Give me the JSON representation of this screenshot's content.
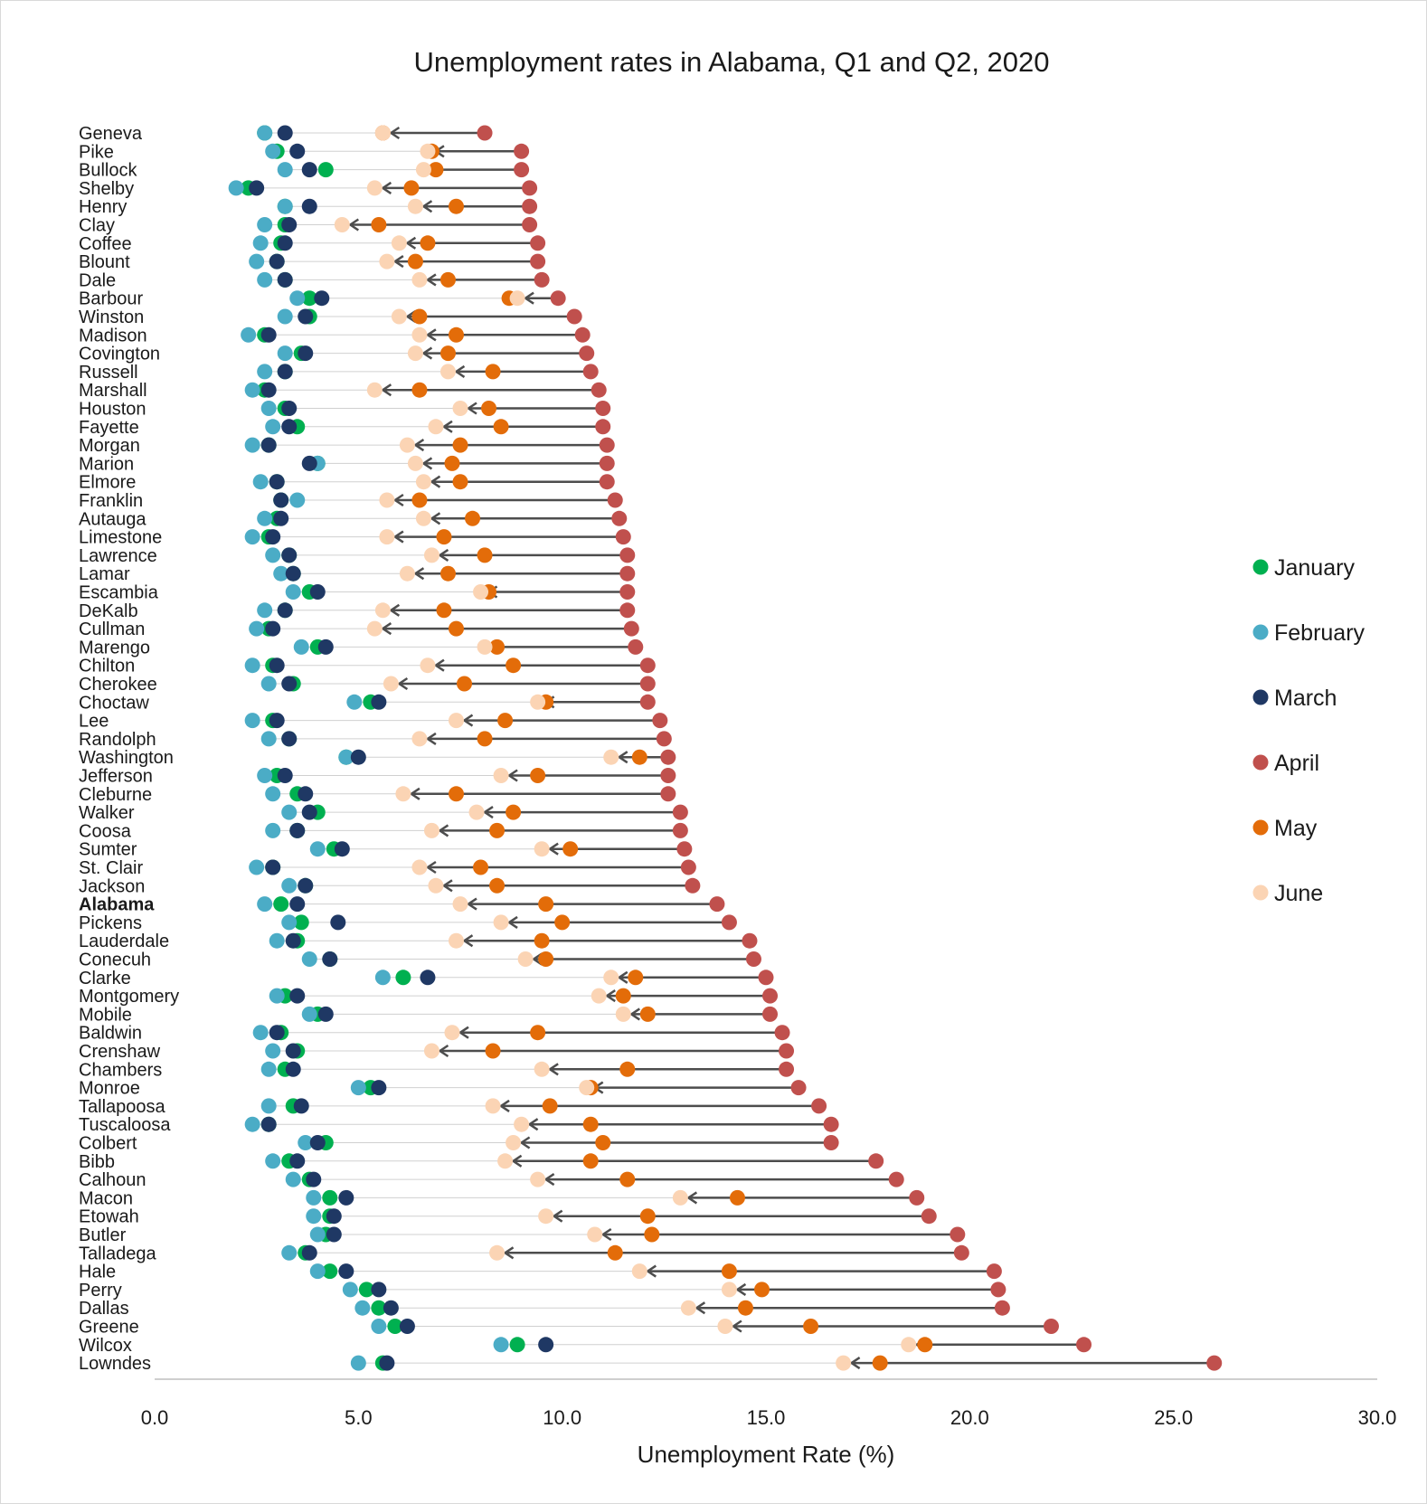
{
  "chart_data": {
    "type": "scatter",
    "title": "Unemployment rates in Alabama, Q1 and Q2, 2020",
    "xlabel": "Unemployment  Rate (%)",
    "xlim": [
      0,
      30
    ],
    "xticks": [
      "0.0",
      "5.0",
      "10.0",
      "15.0",
      "20.0",
      "25.0",
      "30.0"
    ],
    "legend_position": "right",
    "series": [
      {
        "name": "January",
        "color": "#00b050"
      },
      {
        "name": "February",
        "color": "#4bacc6"
      },
      {
        "name": "March",
        "color": "#1f3864"
      },
      {
        "name": "April",
        "color": "#c0504d"
      },
      {
        "name": "May",
        "color": "#e36c09"
      },
      {
        "name": "June",
        "color": "#fbd4b4"
      }
    ],
    "order": [
      "January",
      "February",
      "March",
      "April",
      "May",
      "June"
    ],
    "rows": [
      {
        "county": "Geneva",
        "values": [
          2.7,
          2.7,
          3.2,
          8.1,
          5.6,
          5.6
        ]
      },
      {
        "county": "Pike",
        "values": [
          3.0,
          2.9,
          3.5,
          9.0,
          6.8,
          6.7
        ]
      },
      {
        "county": "Bullock",
        "values": [
          4.2,
          3.2,
          3.8,
          9.0,
          6.9,
          6.6
        ]
      },
      {
        "county": "Shelby",
        "values": [
          2.3,
          2.0,
          2.5,
          9.2,
          6.3,
          5.4
        ]
      },
      {
        "county": "Henry",
        "values": [
          3.2,
          3.2,
          3.8,
          9.2,
          7.4,
          6.4
        ]
      },
      {
        "county": "Clay",
        "values": [
          3.2,
          2.7,
          3.3,
          9.2,
          5.5,
          4.6
        ]
      },
      {
        "county": "Coffee",
        "values": [
          3.1,
          2.6,
          3.2,
          9.4,
          6.7,
          6.0
        ]
      },
      {
        "county": "Blount",
        "values": [
          3.0,
          2.5,
          3.0,
          9.4,
          6.4,
          5.7
        ]
      },
      {
        "county": "Dale",
        "values": [
          3.2,
          2.7,
          3.2,
          9.5,
          7.2,
          6.5
        ]
      },
      {
        "county": "Barbour",
        "values": [
          3.8,
          3.5,
          4.1,
          9.9,
          8.7,
          8.9
        ]
      },
      {
        "county": "Winston",
        "values": [
          3.8,
          3.2,
          3.7,
          10.3,
          6.5,
          6.0
        ]
      },
      {
        "county": "Madison",
        "values": [
          2.7,
          2.3,
          2.8,
          10.5,
          7.4,
          6.5
        ]
      },
      {
        "county": "Covington",
        "values": [
          3.6,
          3.2,
          3.7,
          10.6,
          7.2,
          6.4
        ]
      },
      {
        "county": "Russell",
        "values": [
          3.2,
          2.7,
          3.2,
          10.7,
          8.3,
          7.2
        ]
      },
      {
        "county": "Marshall",
        "values": [
          2.7,
          2.4,
          2.8,
          10.9,
          6.5,
          5.4
        ]
      },
      {
        "county": "Houston",
        "values": [
          3.2,
          2.8,
          3.3,
          11.0,
          8.2,
          7.5
        ]
      },
      {
        "county": "Fayette",
        "values": [
          3.5,
          2.9,
          3.3,
          11.0,
          8.5,
          6.9
        ]
      },
      {
        "county": "Morgan",
        "values": [
          2.8,
          2.4,
          2.8,
          11.1,
          7.5,
          6.2
        ]
      },
      {
        "county": "Marion",
        "values": [
          4.0,
          4.0,
          3.8,
          11.1,
          7.3,
          6.4
        ]
      },
      {
        "county": "Elmore",
        "values": [
          3.0,
          2.6,
          3.0,
          11.1,
          7.5,
          6.6
        ]
      },
      {
        "county": "Franklin",
        "values": [
          3.1,
          3.5,
          3.1,
          11.3,
          6.5,
          5.7
        ]
      },
      {
        "county": "Autauga",
        "values": [
          3.0,
          2.7,
          3.1,
          11.4,
          7.8,
          6.6
        ]
      },
      {
        "county": "Limestone",
        "values": [
          2.8,
          2.4,
          2.9,
          11.5,
          7.1,
          5.7
        ]
      },
      {
        "county": "Lawrence",
        "values": [
          3.3,
          2.9,
          3.3,
          11.6,
          8.1,
          6.8
        ]
      },
      {
        "county": "Lamar",
        "values": [
          3.4,
          3.1,
          3.4,
          11.6,
          7.2,
          6.2
        ]
      },
      {
        "county": "Escambia",
        "values": [
          3.8,
          3.4,
          4.0,
          11.6,
          8.2,
          8.0
        ]
      },
      {
        "county": "DeKalb",
        "values": [
          3.2,
          2.7,
          3.2,
          11.6,
          7.1,
          5.6
        ]
      },
      {
        "county": "Cullman",
        "values": [
          2.8,
          2.5,
          2.9,
          11.7,
          7.4,
          5.4
        ]
      },
      {
        "county": "Marengo",
        "values": [
          4.0,
          3.6,
          4.2,
          11.8,
          8.4,
          8.1
        ]
      },
      {
        "county": "Chilton",
        "values": [
          2.9,
          2.4,
          3.0,
          12.1,
          8.8,
          6.7
        ]
      },
      {
        "county": "Cherokee",
        "values": [
          3.4,
          2.8,
          3.3,
          12.1,
          7.6,
          5.8
        ]
      },
      {
        "county": "Choctaw",
        "values": [
          5.3,
          4.9,
          5.5,
          12.1,
          9.6,
          9.4
        ]
      },
      {
        "county": "Lee",
        "values": [
          2.9,
          2.4,
          3.0,
          12.4,
          8.6,
          7.4
        ]
      },
      {
        "county": "Randolph",
        "values": [
          3.3,
          2.8,
          3.3,
          12.5,
          8.1,
          6.5
        ]
      },
      {
        "county": "Washington",
        "values": [
          4.7,
          4.7,
          5.0,
          12.6,
          11.9,
          11.2
        ]
      },
      {
        "county": "Jefferson",
        "values": [
          3.0,
          2.7,
          3.2,
          12.6,
          9.4,
          8.5
        ]
      },
      {
        "county": "Cleburne",
        "values": [
          3.5,
          2.9,
          3.7,
          12.6,
          7.4,
          6.1
        ]
      },
      {
        "county": "Walker",
        "values": [
          4.0,
          3.3,
          3.8,
          12.9,
          8.8,
          7.9
        ]
      },
      {
        "county": "Coosa",
        "values": [
          3.5,
          2.9,
          3.5,
          12.9,
          8.4,
          6.8
        ]
      },
      {
        "county": "Sumter",
        "values": [
          4.4,
          4.0,
          4.6,
          13.0,
          10.2,
          9.5
        ]
      },
      {
        "county": "St. Clair",
        "values": [
          2.9,
          2.5,
          2.9,
          13.1,
          8.0,
          6.5
        ]
      },
      {
        "county": "Jackson",
        "values": [
          3.7,
          3.3,
          3.7,
          13.2,
          8.4,
          6.9
        ]
      },
      {
        "county": "Alabama",
        "values": [
          3.1,
          2.7,
          3.5,
          13.8,
          9.6,
          7.5
        ]
      },
      {
        "county": "Pickens",
        "values": [
          3.6,
          3.3,
          4.5,
          14.1,
          10.0,
          8.5
        ]
      },
      {
        "county": "Lauderdale",
        "values": [
          3.5,
          3.0,
          3.4,
          14.6,
          9.5,
          7.4
        ]
      },
      {
        "county": "Conecuh",
        "values": [
          4.3,
          3.8,
          4.3,
          14.7,
          9.6,
          9.1
        ]
      },
      {
        "county": "Clarke",
        "values": [
          6.1,
          5.6,
          6.7,
          15.0,
          11.8,
          11.2
        ]
      },
      {
        "county": "Montgomery",
        "values": [
          3.2,
          3.0,
          3.5,
          15.1,
          11.5,
          10.9
        ]
      },
      {
        "county": "Mobile",
        "values": [
          4.0,
          3.8,
          4.2,
          15.1,
          12.1,
          11.5
        ]
      },
      {
        "county": "Baldwin",
        "values": [
          3.1,
          2.6,
          3.0,
          15.4,
          9.4,
          7.3
        ]
      },
      {
        "county": "Crenshaw",
        "values": [
          3.5,
          2.9,
          3.4,
          15.5,
          8.3,
          6.8
        ]
      },
      {
        "county": "Chambers",
        "values": [
          3.2,
          2.8,
          3.4,
          15.5,
          11.6,
          9.5
        ]
      },
      {
        "county": "Monroe",
        "values": [
          5.3,
          5.0,
          5.5,
          15.8,
          10.7,
          10.6
        ]
      },
      {
        "county": "Tallapoosa",
        "values": [
          3.4,
          2.8,
          3.6,
          16.3,
          9.7,
          8.3
        ]
      },
      {
        "county": "Tuscaloosa",
        "values": [
          2.8,
          2.4,
          2.8,
          16.6,
          10.7,
          9.0
        ]
      },
      {
        "county": "Colbert",
        "values": [
          4.2,
          3.7,
          4.0,
          16.6,
          11.0,
          8.8
        ]
      },
      {
        "county": "Bibb",
        "values": [
          3.3,
          2.9,
          3.5,
          17.7,
          10.7,
          8.6
        ]
      },
      {
        "county": "Calhoun",
        "values": [
          3.8,
          3.4,
          3.9,
          18.2,
          11.6,
          9.4
        ]
      },
      {
        "county": "Macon",
        "values": [
          4.3,
          3.9,
          4.7,
          18.7,
          14.3,
          12.9
        ]
      },
      {
        "county": "Etowah",
        "values": [
          4.3,
          3.9,
          4.4,
          19.0,
          12.1,
          9.6
        ]
      },
      {
        "county": "Butler",
        "values": [
          4.2,
          4.0,
          4.4,
          19.7,
          12.2,
          10.8
        ]
      },
      {
        "county": "Talladega",
        "values": [
          3.7,
          3.3,
          3.8,
          19.8,
          11.3,
          8.4
        ]
      },
      {
        "county": "Hale",
        "values": [
          4.3,
          4.0,
          4.7,
          20.6,
          14.1,
          11.9
        ]
      },
      {
        "county": "Perry",
        "values": [
          5.2,
          4.8,
          5.5,
          20.7,
          14.9,
          14.1
        ]
      },
      {
        "county": "Dallas",
        "values": [
          5.5,
          5.1,
          5.8,
          20.8,
          14.5,
          13.1
        ]
      },
      {
        "county": "Greene",
        "values": [
          5.9,
          5.5,
          6.2,
          22.0,
          16.1,
          14.0
        ]
      },
      {
        "county": "Wilcox",
        "values": [
          8.9,
          8.5,
          9.6,
          22.8,
          18.9,
          18.5
        ]
      },
      {
        "county": "Lowndes",
        "values": [
          5.6,
          5.0,
          5.7,
          26.0,
          17.8,
          16.9
        ]
      }
    ]
  }
}
